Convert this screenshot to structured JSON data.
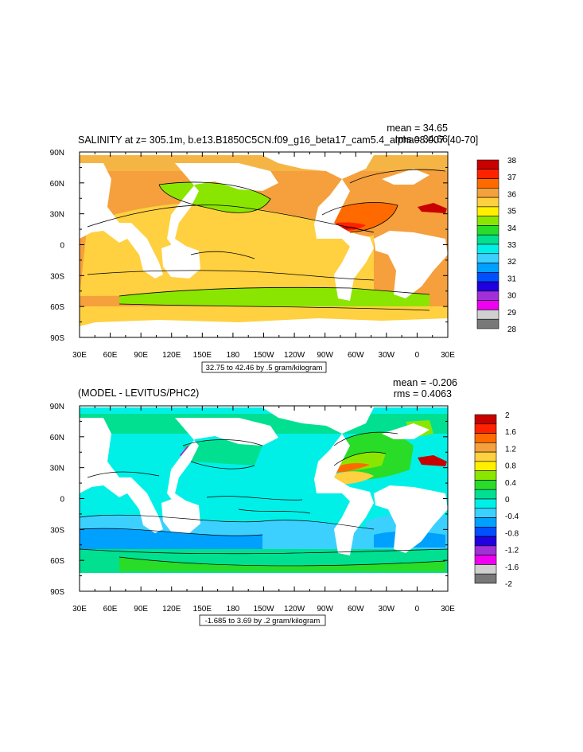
{
  "top_panel": {
    "title": "SALINITY at z= 305.1m, b.e13.B1850C5CN.f09_g16_beta17_cam5.4_alpha08.007 [40-70]",
    "mean": "mean = 34.65",
    "rms": "rms = 34.66",
    "contour_info": "32.75 to 42.46 by .5 gram/kilogram",
    "colorbar_labels": [
      "38",
      "37",
      "36",
      "35",
      "34",
      "33",
      "32",
      "31",
      "30",
      "29",
      "28"
    ],
    "colorbar_colors": [
      "#c80000",
      "#ff2200",
      "#ff6a00",
      "#f5a03c",
      "#ffd040",
      "#fff000",
      "#8ae600",
      "#28dc28",
      "#00e090",
      "#00f0e8",
      "#3cd0ff",
      "#00a0ff",
      "#0050ff",
      "#2000e0",
      "#a030d8",
      "#f000f0",
      "#d0d0d0",
      "#787878"
    ]
  },
  "bottom_panel": {
    "title": "(MODEL - LEVITUS/PHC2)",
    "mean": "mean = -0.206",
    "rms": "rms = 0.4063",
    "contour_info": "-1.685 to 3.69 by .2 gram/kilogram",
    "colorbar_labels": [
      "2",
      "1.6",
      "1.2",
      "0.8",
      "0.4",
      "0",
      "-0.4",
      "-0.8",
      "-1.2",
      "-1.6",
      "-2"
    ],
    "colorbar_colors": [
      "#c80000",
      "#ff2200",
      "#ff6a00",
      "#f5a03c",
      "#ffd040",
      "#fff000",
      "#8ae600",
      "#28dc28",
      "#00e090",
      "#00f0e8",
      "#3cd0ff",
      "#00a0ff",
      "#0050ff",
      "#2000e0",
      "#a030d8",
      "#f000f0",
      "#d0d0d0",
      "#787878"
    ]
  },
  "axes": {
    "lon_labels": [
      "30E",
      "60E",
      "90E",
      "120E",
      "150E",
      "180",
      "150W",
      "120W",
      "90W",
      "60W",
      "30W",
      "0",
      "30E"
    ],
    "lat_labels": [
      "90N",
      "60N",
      "30N",
      "0",
      "30S",
      "60S",
      "90S"
    ]
  }
}
